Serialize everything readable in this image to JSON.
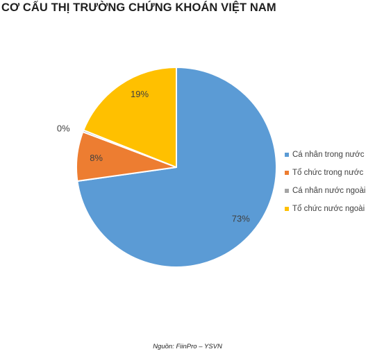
{
  "title": "CƠ CẤU THỊ TRƯỜNG CHỨNG KHOÁN VIỆT NAM",
  "source": "Nguồn: FiinPro – YSVN",
  "chart_data": {
    "type": "pie",
    "title": "CƠ CẤU THỊ TRƯỜNG CHỨNG KHOÁN VIỆT NAM",
    "legend_position": "right",
    "slices": [
      {
        "name": "Cá nhân trong nước",
        "value": 73,
        "label": "73%",
        "color": "#5b9bd5"
      },
      {
        "name": "Tổ chức trong nước",
        "value": 8,
        "label": "8%",
        "color": "#ed7d31"
      },
      {
        "name": "Cá nhân nước ngoài",
        "value": 0.3,
        "label": "0%",
        "color": "#a5a5a5"
      },
      {
        "name": "Tổ chức nước ngoài",
        "value": 19,
        "label": "19%",
        "color": "#ffc000"
      }
    ]
  }
}
